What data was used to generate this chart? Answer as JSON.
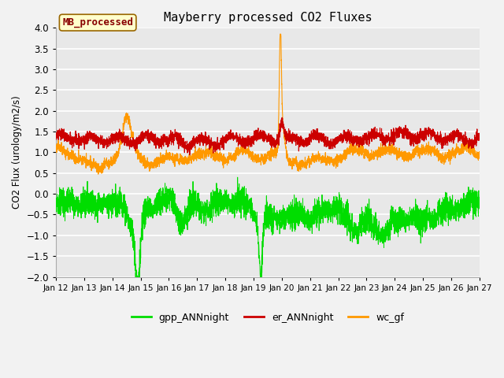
{
  "title": "Mayberry processed CO2 Fluxes",
  "ylabel": "CO2 Flux (urology/m2/s)",
  "ylim": [
    -2.0,
    4.0
  ],
  "yticks": [
    -2.0,
    -1.5,
    -1.0,
    -0.5,
    0.0,
    0.5,
    1.0,
    1.5,
    2.0,
    2.5,
    3.0,
    3.5,
    4.0
  ],
  "x_tick_labels": [
    "Jan 12",
    "Jan 13",
    "Jan 14",
    "Jan 15",
    "Jan 16",
    "Jan 17",
    "Jan 18",
    "Jan 19",
    "Jan 20",
    "Jan 21",
    "Jan 22",
    "Jan 23",
    "Jan 24",
    "Jan 25",
    "Jan 26",
    "Jan 27"
  ],
  "series_colors": {
    "gpp_ANNnight": "#00dd00",
    "er_ANNnight": "#cc0000",
    "wc_gf": "#ff9900"
  },
  "legend_label": "MB_processed",
  "legend_box_facecolor": "#ffffcc",
  "legend_box_edgecolor": "#996600",
  "legend_text_color": "#880000",
  "plot_bg_color": "#e8e8e8",
  "fig_bg_color": "#f2f2f2",
  "grid_color": "#ffffff",
  "seed": 12345,
  "n_points": 4000
}
